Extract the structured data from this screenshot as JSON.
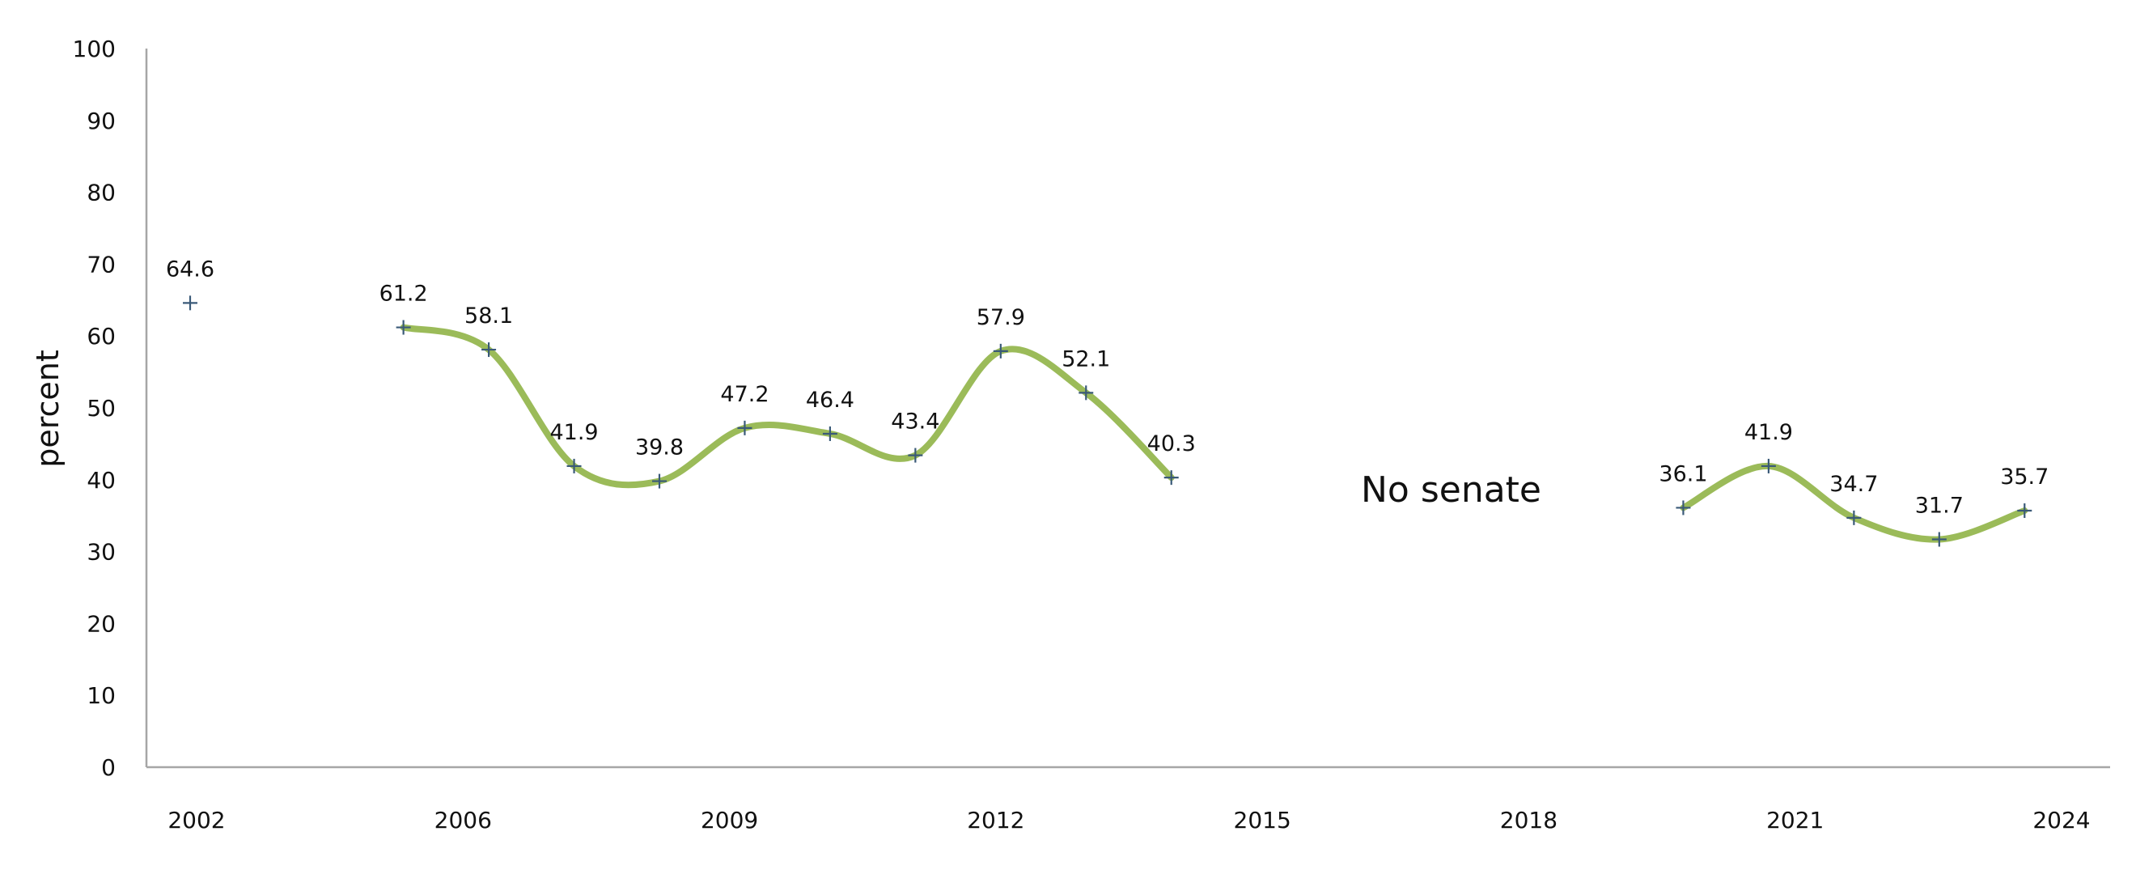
{
  "chart_data": {
    "type": "line",
    "title": "",
    "xlabel": "",
    "ylabel": "percent",
    "ylim": [
      0,
      100
    ],
    "yticks": [
      0,
      10,
      20,
      30,
      40,
      50,
      60,
      70,
      80,
      90,
      100
    ],
    "xlim": [
      2002,
      2024
    ],
    "xtick_labels": [
      "2002",
      "2006",
      "2009",
      "2012",
      "2015",
      "2018",
      "2021",
      "2024"
    ],
    "grid": false,
    "legend": "none",
    "line_color": "#9bbb59",
    "marker_color": "#3a5a78",
    "annotation": "No senate",
    "points": [
      {
        "x": 2002,
        "y": 64.6,
        "label": "64.6",
        "segment": 0
      },
      {
        "x": 2004.5,
        "y": 61.2,
        "label": "61.2",
        "segment": 1
      },
      {
        "x": 2005.5,
        "y": 58.1,
        "label": "58.1",
        "segment": 1
      },
      {
        "x": 2006.5,
        "y": 41.9,
        "label": "41.9",
        "segment": 1
      },
      {
        "x": 2007.5,
        "y": 39.8,
        "label": "39.8",
        "segment": 1
      },
      {
        "x": 2008.5,
        "y": 47.2,
        "label": "47.2",
        "segment": 1
      },
      {
        "x": 2009.5,
        "y": 46.4,
        "label": "46.4",
        "segment": 1
      },
      {
        "x": 2010.5,
        "y": 43.4,
        "label": "43.4",
        "segment": 1
      },
      {
        "x": 2011.5,
        "y": 57.9,
        "label": "57.9",
        "segment": 1
      },
      {
        "x": 2012.5,
        "y": 52.1,
        "label": "52.1",
        "segment": 1
      },
      {
        "x": 2013.5,
        "y": 40.3,
        "label": "40.3",
        "segment": 1
      },
      {
        "x": 2019.5,
        "y": 36.1,
        "label": "36.1",
        "segment": 2
      },
      {
        "x": 2020.5,
        "y": 41.9,
        "label": "41.9",
        "segment": 2
      },
      {
        "x": 2021.5,
        "y": 34.7,
        "label": "34.7",
        "segment": 2
      },
      {
        "x": 2022.5,
        "y": 31.7,
        "label": "31.7",
        "segment": 2
      },
      {
        "x": 2023.5,
        "y": 35.7,
        "label": "35.7",
        "segment": 2
      }
    ]
  }
}
